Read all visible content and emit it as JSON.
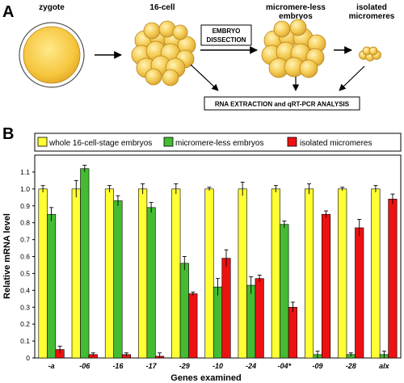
{
  "panel_a": {
    "label": "A",
    "stages": {
      "zygote": "zygote",
      "sixteen_cell": "16-cell",
      "microless_line1": "micromere-less",
      "microless_line2": "embryos",
      "isolated_line1": "isolated",
      "isolated_line2": "micromeres"
    },
    "dissection_line1": "EMBRYO",
    "dissection_line2": "DISSECTION",
    "analysis": "RNA EXTRACTION and qRT-PCR ANALYSIS",
    "colors": {
      "cell_fill": "#f2c84a",
      "cell_stroke": "#b8861a",
      "zygote_fill": "#f5c842"
    }
  },
  "panel_b": {
    "label": "B",
    "legend": [
      {
        "label": "whole 16-cell-stage embryos",
        "color": "#ffff33"
      },
      {
        "label": "micromere-less embryos",
        "color": "#44bb33"
      },
      {
        "label": "isolated micromeres",
        "color": "#ee1111"
      }
    ]
  },
  "chart_data": {
    "type": "bar",
    "ylabel": "Relative mRNA  level",
    "xlabel": "Genes examined",
    "ylim": [
      0,
      1.2
    ],
    "yticks": [
      "0",
      "0.1",
      "0.2",
      "0.3",
      "0.4",
      "0.5",
      "0.6",
      "0.7",
      "0.8",
      "0.9",
      "1.0",
      "1.1"
    ],
    "categories": [
      "-a",
      "-06",
      "-16",
      "-17",
      "-29",
      "-10",
      "-24",
      "-04*",
      "-09",
      "-28",
      "alx"
    ],
    "series": [
      {
        "name": "whole 16-cell-stage embryos",
        "color": "#ffff33",
        "values": [
          1.0,
          1.0,
          1.0,
          1.0,
          1.0,
          1.0,
          1.0,
          1.0,
          1.0,
          1.0,
          1.0
        ],
        "errors": [
          0.02,
          0.05,
          0.02,
          0.03,
          0.03,
          0.01,
          0.04,
          0.02,
          0.03,
          0.01,
          0.02
        ]
      },
      {
        "name": "micromere-less embryos",
        "color": "#44bb33",
        "values": [
          0.85,
          1.12,
          0.93,
          0.89,
          0.56,
          0.42,
          0.43,
          0.79,
          0.02,
          0.02,
          0.02
        ],
        "errors": [
          0.04,
          0.02,
          0.03,
          0.03,
          0.04,
          0.05,
          0.05,
          0.02,
          0.02,
          0.01,
          0.02
        ]
      },
      {
        "name": "isolated micromeres",
        "color": "#ee1111",
        "values": [
          0.05,
          0.02,
          0.02,
          0.01,
          0.38,
          0.59,
          0.47,
          0.3,
          0.85,
          0.77,
          0.94
        ],
        "errors": [
          0.02,
          0.01,
          0.01,
          0.02,
          0.01,
          0.05,
          0.02,
          0.03,
          0.02,
          0.05,
          0.03
        ]
      }
    ]
  }
}
